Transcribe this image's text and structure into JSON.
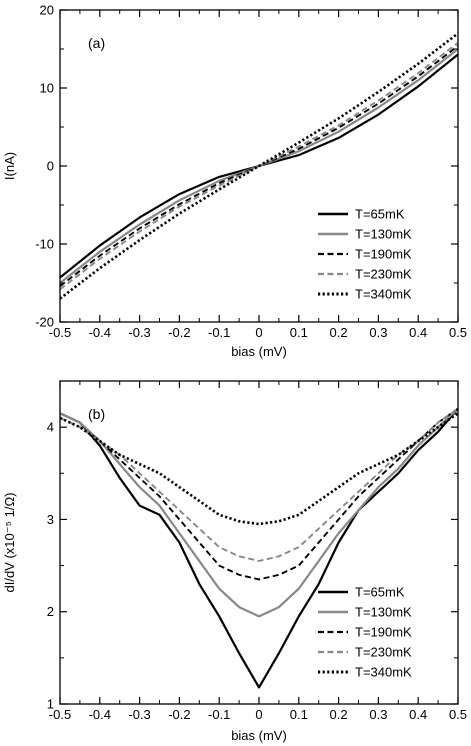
{
  "chart_data": [
    {
      "type": "line",
      "panel_label": "(a)",
      "xlabel": "bias (mV)",
      "ylabel": "I(nA)",
      "xlim": [
        -0.5,
        0.5
      ],
      "ylim": [
        -20,
        20
      ],
      "x_ticks": [
        -0.5,
        -0.4,
        -0.3,
        -0.2,
        -0.1,
        0,
        0.1,
        0.2,
        0.3,
        0.4,
        0.5
      ],
      "x_tick_labels": [
        "-0.5",
        "-0.4",
        "-0.3",
        "-0.2",
        "-0.1",
        "0",
        "0.1",
        "0.2",
        "0.3",
        "0.4",
        "0.5"
      ],
      "y_ticks": [
        -20,
        -10,
        0,
        10,
        20
      ],
      "y_tick_labels": [
        "-20",
        "-10",
        "0",
        "10",
        "20"
      ],
      "legend_position": "bottom-right",
      "x": [
        -0.5,
        -0.4,
        -0.3,
        -0.2,
        -0.1,
        0,
        0.1,
        0.2,
        0.3,
        0.4,
        0.5
      ],
      "series": [
        {
          "name": "T=65mK",
          "color": "#000000",
          "style": "solid",
          "values": [
            -14.3,
            -10.2,
            -6.6,
            -3.6,
            -1.4,
            0,
            1.4,
            3.6,
            6.6,
            10.2,
            14.3
          ]
        },
        {
          "name": "T=130mK",
          "color": "#888888",
          "style": "solid",
          "values": [
            -15.0,
            -11.0,
            -7.5,
            -4.4,
            -1.9,
            0,
            1.9,
            4.4,
            7.5,
            11.0,
            15.0
          ]
        },
        {
          "name": "T=190mK",
          "color": "#000000",
          "style": "dashed",
          "values": [
            -15.4,
            -11.5,
            -8.0,
            -4.9,
            -2.2,
            0,
            2.2,
            4.9,
            8.0,
            11.5,
            15.4
          ]
        },
        {
          "name": "T=230mK",
          "color": "#888888",
          "style": "dashed",
          "values": [
            -15.8,
            -11.9,
            -8.4,
            -5.2,
            -2.5,
            0,
            2.5,
            5.2,
            8.4,
            11.9,
            15.8
          ]
        },
        {
          "name": "T=340mK",
          "color": "#000000",
          "style": "dotted",
          "values": [
            -17.0,
            -13.1,
            -9.5,
            -6.1,
            -3.0,
            0,
            3.0,
            6.1,
            9.5,
            13.1,
            17.0
          ]
        }
      ]
    },
    {
      "type": "line",
      "panel_label": "(b)",
      "xlabel": "bias (mV)",
      "ylabel": "dI/dV (x10⁻⁵ 1/Ω)",
      "xlim": [
        -0.5,
        0.5
      ],
      "ylim": [
        1,
        4.5
      ],
      "x_ticks": [
        -0.5,
        -0.4,
        -0.3,
        -0.2,
        -0.1,
        0,
        0.1,
        0.2,
        0.3,
        0.4,
        0.5
      ],
      "x_tick_labels": [
        "-0.5",
        "-0.4",
        "-0.3",
        "-0.2",
        "-0.1",
        "0",
        "0.1",
        "0.2",
        "0.3",
        "0.4",
        "0.5"
      ],
      "y_ticks": [
        1,
        2,
        3,
        4
      ],
      "y_tick_labels": [
        "1",
        "2",
        "3",
        "4"
      ],
      "legend_position": "bottom-right",
      "x": [
        -0.5,
        -0.45,
        -0.4,
        -0.35,
        -0.3,
        -0.25,
        -0.2,
        -0.15,
        -0.1,
        -0.05,
        0,
        0.05,
        0.1,
        0.15,
        0.2,
        0.25,
        0.3,
        0.35,
        0.4,
        0.45,
        0.5
      ],
      "series": [
        {
          "name": "T=65mK",
          "color": "#000000",
          "style": "solid",
          "values": [
            4.15,
            4.05,
            3.8,
            3.45,
            3.15,
            3.05,
            2.75,
            2.3,
            1.95,
            1.55,
            1.18,
            1.55,
            1.95,
            2.3,
            2.75,
            3.1,
            3.3,
            3.5,
            3.75,
            3.95,
            4.2
          ]
        },
        {
          "name": "T=130mK",
          "color": "#888888",
          "style": "solid",
          "values": [
            4.15,
            4.05,
            3.85,
            3.6,
            3.35,
            3.15,
            2.85,
            2.55,
            2.25,
            2.05,
            1.95,
            2.05,
            2.25,
            2.55,
            2.85,
            3.1,
            3.35,
            3.55,
            3.8,
            4.0,
            4.2
          ]
        },
        {
          "name": "T=190mK",
          "color": "#000000",
          "style": "dashed",
          "values": [
            4.1,
            4.0,
            3.85,
            3.65,
            3.45,
            3.25,
            3.0,
            2.75,
            2.5,
            2.4,
            2.35,
            2.4,
            2.5,
            2.75,
            3.0,
            3.25,
            3.45,
            3.65,
            3.85,
            4.05,
            4.2
          ]
        },
        {
          "name": "T=230mK",
          "color": "#888888",
          "style": "dashed",
          "values": [
            4.1,
            4.0,
            3.85,
            3.7,
            3.5,
            3.3,
            3.1,
            2.9,
            2.7,
            2.6,
            2.55,
            2.6,
            2.7,
            2.9,
            3.1,
            3.3,
            3.5,
            3.7,
            3.85,
            4.05,
            4.2
          ]
        },
        {
          "name": "T=340mK",
          "color": "#000000",
          "style": "dotted",
          "values": [
            4.1,
            4.0,
            3.85,
            3.7,
            3.6,
            3.5,
            3.35,
            3.2,
            3.05,
            2.98,
            2.95,
            2.98,
            3.05,
            3.2,
            3.35,
            3.5,
            3.6,
            3.7,
            3.85,
            4.0,
            4.15
          ]
        }
      ]
    }
  ]
}
